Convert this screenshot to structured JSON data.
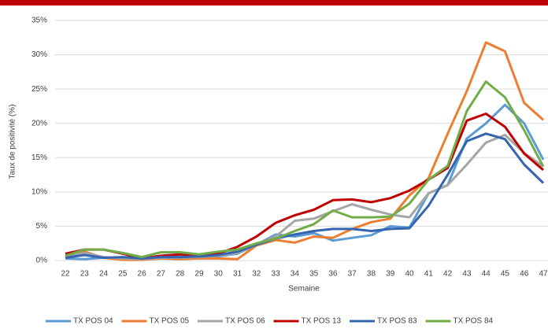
{
  "chart_data": {
    "type": "line",
    "y_label": "Taux de positivité (%)",
    "x_label": "Semaine",
    "categories": [
      "22",
      "23",
      "24",
      "25",
      "26",
      "27",
      "28",
      "29",
      "30",
      "31",
      "32",
      "33",
      "34",
      "35",
      "36",
      "37",
      "38",
      "39",
      "40",
      "41",
      "42",
      "43",
      "44",
      "45",
      "46",
      "47"
    ],
    "ylim": [
      0,
      35
    ],
    "yticks": [
      {
        "value": 0,
        "label": "0%"
      },
      {
        "value": 5,
        "label": "5%"
      },
      {
        "value": 10,
        "label": "10%"
      },
      {
        "value": 15,
        "label": "15%"
      },
      {
        "value": 20,
        "label": "20%"
      },
      {
        "value": 25,
        "label": "25%"
      },
      {
        "value": 30,
        "label": "30%"
      },
      {
        "value": 35,
        "label": "35%"
      }
    ],
    "grid": true,
    "legend": "bottom",
    "series": [
      {
        "name": "TX POS 04",
        "color": "#5b9bd5",
        "values": [
          0.3,
          0.2,
          0.4,
          0.3,
          0.2,
          0.3,
          0.3,
          0.4,
          0.6,
          1.0,
          2.3,
          3.8,
          3.5,
          4.0,
          2.9,
          3.3,
          3.7,
          5.0,
          4.8,
          9.8,
          11.0,
          17.8,
          20.0,
          22.7,
          20.0,
          14.7
        ]
      },
      {
        "name": "TX POS 05",
        "color": "#ed7d31",
        "values": [
          0.5,
          1.3,
          0.4,
          0.1,
          0.1,
          0.3,
          0.2,
          0.3,
          0.3,
          0.2,
          2.2,
          3.0,
          2.6,
          3.5,
          3.3,
          4.6,
          5.6,
          6.1,
          9.5,
          12.0,
          18.5,
          24.7,
          31.8,
          30.5,
          23.0,
          20.5
        ]
      },
      {
        "name": "TX POS 06",
        "color": "#a5a5a5",
        "values": [
          0.6,
          1.1,
          0.5,
          0.3,
          0.2,
          0.4,
          0.4,
          0.5,
          0.7,
          1.1,
          2.3,
          3.5,
          5.8,
          6.1,
          7.2,
          8.2,
          7.4,
          6.7,
          6.3,
          9.8,
          11.0,
          14.0,
          17.2,
          18.3,
          15.7,
          13.7
        ]
      },
      {
        "name": "TX POS 13",
        "color": "#c00000",
        "values": [
          1.0,
          1.6,
          1.6,
          1.0,
          0.3,
          0.7,
          0.9,
          0.8,
          1.0,
          2.0,
          3.5,
          5.5,
          6.6,
          7.4,
          8.8,
          8.9,
          8.5,
          9.1,
          10.2,
          11.8,
          13.5,
          20.4,
          21.4,
          19.5,
          15.6,
          13.2
        ]
      },
      {
        "name": "TX POS 83",
        "color": "#3565b0",
        "values": [
          0.4,
          0.8,
          0.4,
          0.5,
          0.3,
          0.5,
          0.5,
          0.6,
          0.8,
          1.3,
          2.3,
          3.2,
          3.8,
          4.3,
          4.6,
          4.6,
          4.3,
          4.6,
          4.7,
          8.0,
          12.5,
          17.4,
          18.5,
          17.7,
          14.0,
          11.3
        ]
      },
      {
        "name": "TX POS 84",
        "color": "#70ad47",
        "values": [
          0.7,
          1.6,
          1.6,
          1.1,
          0.5,
          1.2,
          1.2,
          0.9,
          1.3,
          1.6,
          2.5,
          3.2,
          4.3,
          5.3,
          7.3,
          6.3,
          6.3,
          6.4,
          8.3,
          11.8,
          13.8,
          21.8,
          26.1,
          23.8,
          19.0,
          13.7
        ]
      }
    ]
  }
}
